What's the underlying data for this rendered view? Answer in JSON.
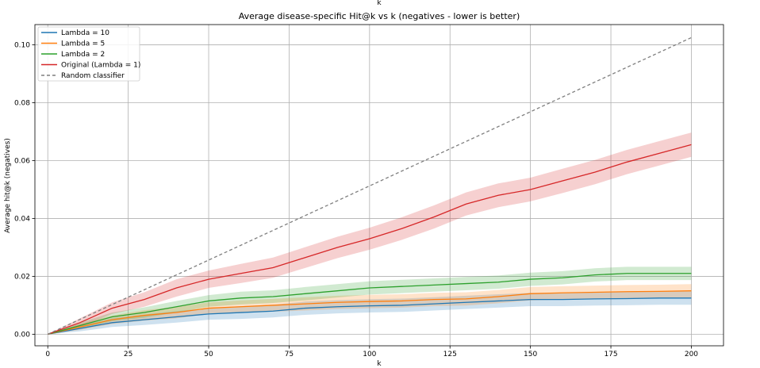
{
  "chart_data": {
    "type": "line",
    "title": "Average disease-specific Hit@k vs k (negatives - lower is better)",
    "top_label": "k",
    "xlabel": "k",
    "ylabel": "Average hit@k (negatives)",
    "xlim": [
      -4,
      210
    ],
    "ylim": [
      -0.004,
      0.107
    ],
    "xticks": [
      0,
      25,
      50,
      75,
      100,
      125,
      150,
      175,
      200
    ],
    "yticks": [
      0.0,
      0.02,
      0.04,
      0.06,
      0.08,
      0.1
    ],
    "ytick_labels": [
      "0.00",
      "0.02",
      "0.04",
      "0.06",
      "0.08",
      "0.10"
    ],
    "grid": true,
    "legend_position": "top-left",
    "series": [
      {
        "name": "Lambda = 10",
        "color": "#1f77b4",
        "x": [
          0,
          10,
          20,
          30,
          40,
          50,
          60,
          70,
          80,
          90,
          100,
          110,
          120,
          130,
          140,
          150,
          160,
          170,
          180,
          190,
          200
        ],
        "y": [
          0.0,
          0.002,
          0.004,
          0.005,
          0.006,
          0.007,
          0.0075,
          0.008,
          0.009,
          0.0095,
          0.0098,
          0.01,
          0.0105,
          0.011,
          0.0115,
          0.012,
          0.012,
          0.0122,
          0.0123,
          0.0125,
          0.0125
        ],
        "band": [
          0.0,
          0.001,
          0.0015,
          0.0018,
          0.002,
          0.002,
          0.0022,
          0.0022,
          0.0023,
          0.0023,
          0.0023,
          0.0023,
          0.0023,
          0.0023,
          0.0023,
          0.0023,
          0.0023,
          0.0023,
          0.0023,
          0.0023,
          0.0023
        ]
      },
      {
        "name": "Lambda = 5",
        "color": "#ff7f0e",
        "x": [
          0,
          10,
          20,
          30,
          40,
          50,
          60,
          70,
          80,
          90,
          100,
          110,
          120,
          130,
          140,
          150,
          160,
          170,
          180,
          190,
          200
        ],
        "y": [
          0.0,
          0.0025,
          0.005,
          0.0065,
          0.0075,
          0.009,
          0.0095,
          0.01,
          0.0105,
          0.011,
          0.0113,
          0.0115,
          0.012,
          0.0122,
          0.013,
          0.014,
          0.0143,
          0.0145,
          0.0147,
          0.0148,
          0.015
        ],
        "band": [
          0.0,
          0.001,
          0.0015,
          0.0018,
          0.002,
          0.002,
          0.0022,
          0.0022,
          0.0023,
          0.0023,
          0.0023,
          0.0023,
          0.0023,
          0.0023,
          0.0023,
          0.0023,
          0.0023,
          0.0023,
          0.0023,
          0.0023,
          0.0023
        ]
      },
      {
        "name": "Lambda = 2",
        "color": "#2ca02c",
        "x": [
          0,
          10,
          20,
          30,
          40,
          50,
          60,
          70,
          80,
          90,
          100,
          110,
          120,
          130,
          140,
          150,
          160,
          170,
          180,
          190,
          200
        ],
        "y": [
          0.0,
          0.003,
          0.006,
          0.0075,
          0.0095,
          0.0115,
          0.0125,
          0.013,
          0.014,
          0.015,
          0.016,
          0.0165,
          0.017,
          0.0175,
          0.018,
          0.019,
          0.0195,
          0.0205,
          0.021,
          0.021,
          0.021
        ],
        "band": [
          0.0,
          0.001,
          0.0015,
          0.0018,
          0.002,
          0.002,
          0.0022,
          0.0022,
          0.0023,
          0.0023,
          0.0023,
          0.0023,
          0.0023,
          0.0023,
          0.0023,
          0.0023,
          0.0023,
          0.0023,
          0.0023,
          0.0023,
          0.0023
        ]
      },
      {
        "name": "Original (Lambda = 1)",
        "color": "#d62728",
        "x": [
          0,
          10,
          20,
          30,
          40,
          50,
          60,
          70,
          80,
          90,
          100,
          110,
          120,
          130,
          140,
          150,
          160,
          170,
          180,
          190,
          200
        ],
        "y": [
          0.0,
          0.004,
          0.009,
          0.012,
          0.016,
          0.019,
          0.021,
          0.023,
          0.0265,
          0.03,
          0.033,
          0.0365,
          0.0405,
          0.045,
          0.048,
          0.05,
          0.053,
          0.056,
          0.0595,
          0.0625,
          0.0655
        ],
        "band": [
          0.0,
          0.0015,
          0.002,
          0.0025,
          0.003,
          0.003,
          0.0033,
          0.0035,
          0.0036,
          0.0037,
          0.0038,
          0.0039,
          0.004,
          0.004,
          0.0041,
          0.0041,
          0.0042,
          0.0042,
          0.0042,
          0.0042,
          0.0042
        ]
      },
      {
        "name": "Random classifier",
        "color": "#7f7f7f",
        "dashed": true,
        "x": [
          0,
          200
        ],
        "y": [
          0.0,
          0.1025
        ]
      }
    ]
  }
}
